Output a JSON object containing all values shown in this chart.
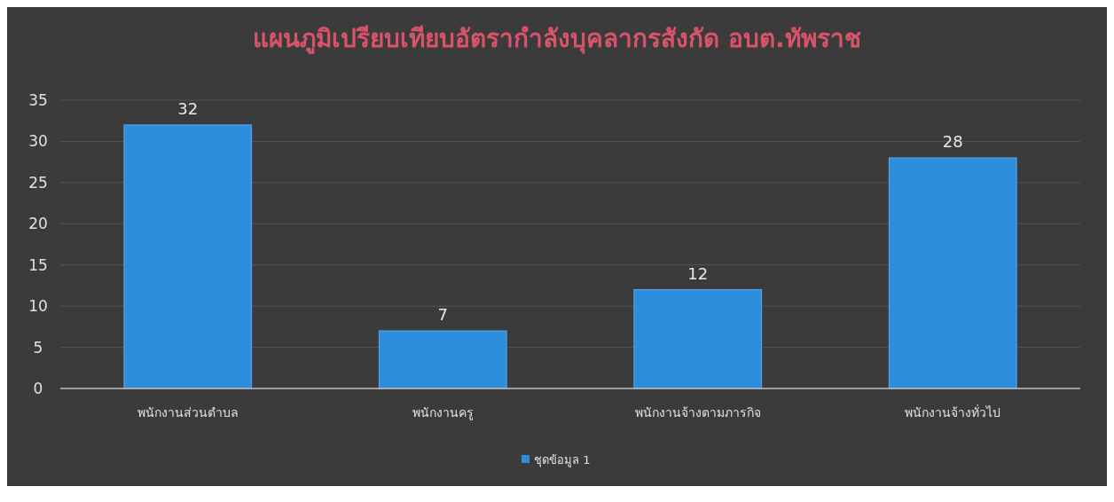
{
  "chart_data": {
    "type": "bar",
    "title": "แผนภูมิเปรียบเทียบอัตรากำลังบุคลากรสังกัด อบต.ทัพราช",
    "categories": [
      "พนักงานส่วนตำบล",
      "พนักงานครู",
      "พนักงานจ้างตามภารกิจ",
      "พนักงานจ้างทั่วไป"
    ],
    "series": [
      {
        "name": "ชุดข้อมูล 1",
        "color": "#2e8ede",
        "values": [
          32,
          7,
          12,
          28
        ]
      }
    ],
    "ylim": [
      0,
      35
    ],
    "yticks": [
      0,
      5,
      10,
      15,
      20,
      25,
      30,
      35
    ],
    "grid": "y",
    "legend": "bottom",
    "data_labels": true
  }
}
